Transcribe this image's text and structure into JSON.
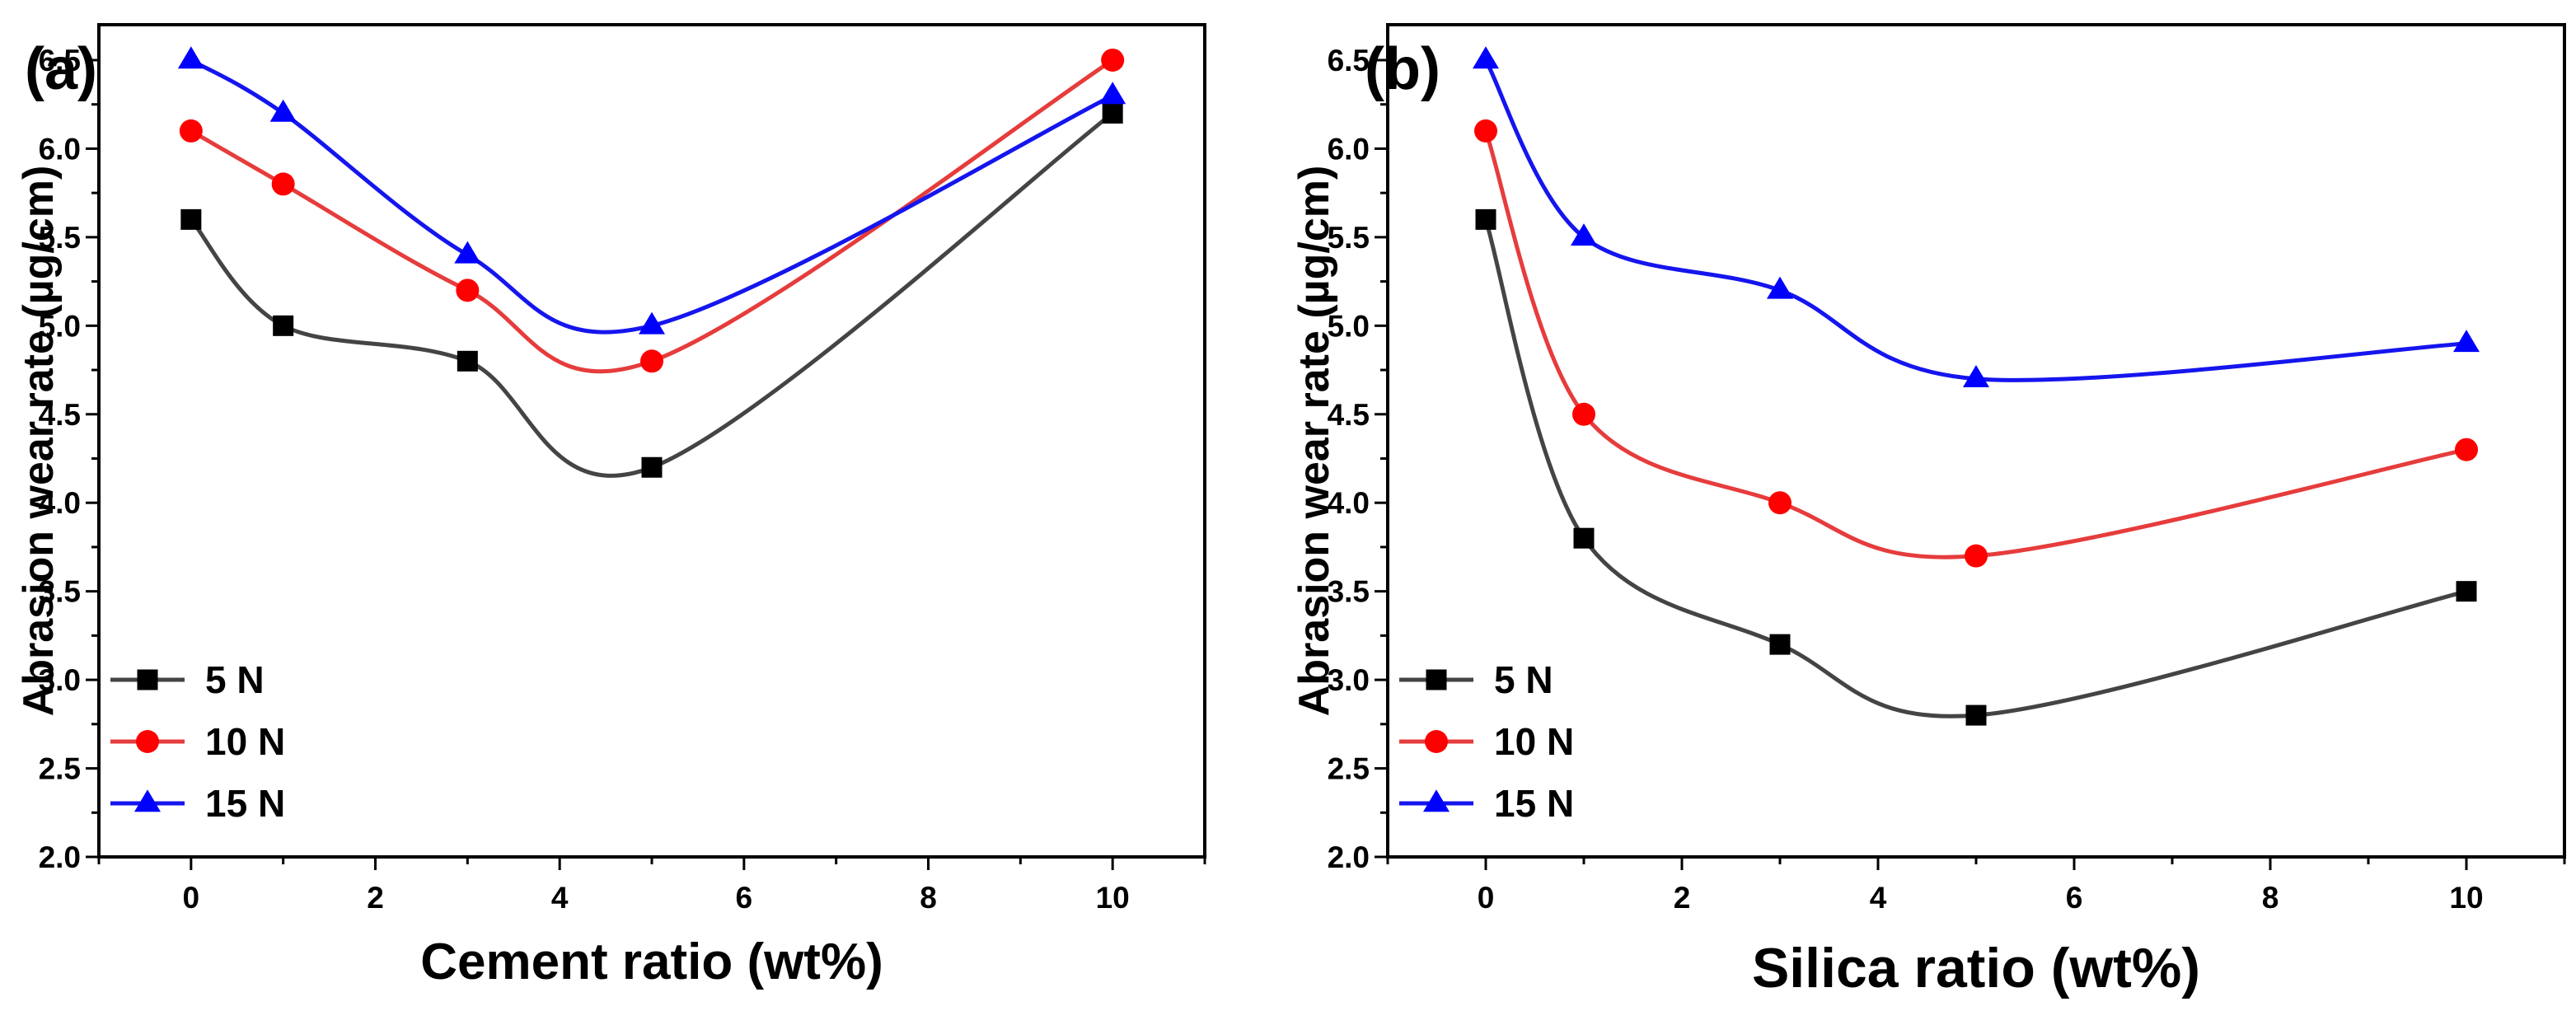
{
  "chart_data": [
    {
      "type": "line",
      "panel_label": "(a)",
      "xlabel": "Cement ratio (wt%)",
      "ylabel": "Abrasion wear rate (µg/cm)",
      "xlim": [
        -1,
        11
      ],
      "ylim": [
        2.0,
        6.7
      ],
      "xticks": [
        0,
        2,
        4,
        6,
        8,
        10
      ],
      "xtick_labels": [
        "0",
        "2",
        "4",
        "6",
        "8",
        "10"
      ],
      "yticks": [
        2.0,
        2.5,
        3.0,
        3.5,
        4.0,
        4.5,
        5.0,
        5.5,
        6.0,
        6.5
      ],
      "ytick_labels": [
        "2.0",
        "2.5",
        "3.0",
        "3.5",
        "4.0",
        "4.5",
        "5.0",
        "5.5",
        "6.0",
        "6.5"
      ],
      "legend_position": "bottom-left",
      "x": [
        0,
        1,
        3,
        5,
        10
      ],
      "series": [
        {
          "name": "5 N",
          "color": "#000000",
          "line_color": "#444444",
          "marker": "square",
          "values": [
            5.6,
            5.0,
            4.8,
            4.2,
            6.2
          ]
        },
        {
          "name": "10 N",
          "color": "#ff0000",
          "line_color": "#e63c3c",
          "marker": "circle",
          "values": [
            6.1,
            5.8,
            5.2,
            4.8,
            6.5
          ]
        },
        {
          "name": "15 N",
          "color": "#0000ff",
          "line_color": "#1515ee",
          "marker": "triangle",
          "values": [
            6.5,
            6.2,
            5.4,
            5.0,
            6.3
          ]
        }
      ]
    },
    {
      "type": "line",
      "panel_label": "(b)",
      "xlabel": "Silica ratio (wt%)",
      "ylabel": "Abrasion wear rate (µg/cm)",
      "xlim": [
        -1,
        11
      ],
      "ylim": [
        2.0,
        6.7
      ],
      "xticks": [
        0,
        2,
        4,
        6,
        8,
        10
      ],
      "xtick_labels": [
        "0",
        "2",
        "4",
        "6",
        "8",
        "10"
      ],
      "yticks": [
        2.0,
        2.5,
        3.0,
        3.5,
        4.0,
        4.5,
        5.0,
        5.5,
        6.0,
        6.5
      ],
      "ytick_labels": [
        "2.0",
        "2.5",
        "3.0",
        "3.5",
        "4.0",
        "4.5",
        "5.0",
        "5.5",
        "6.0",
        "6.5"
      ],
      "legend_position": "bottom-left",
      "x": [
        0,
        1,
        3,
        5,
        10
      ],
      "series": [
        {
          "name": "5 N",
          "color": "#000000",
          "line_color": "#444444",
          "marker": "square",
          "values": [
            5.6,
            3.8,
            3.2,
            2.8,
            3.5
          ]
        },
        {
          "name": "10 N",
          "color": "#ff0000",
          "line_color": "#e63c3c",
          "marker": "circle",
          "values": [
            6.1,
            4.5,
            4.0,
            3.7,
            4.3
          ]
        },
        {
          "name": "15 N",
          "color": "#0000ff",
          "line_color": "#1515ee",
          "marker": "triangle",
          "values": [
            6.5,
            5.5,
            5.2,
            4.7,
            4.9
          ]
        }
      ]
    }
  ]
}
